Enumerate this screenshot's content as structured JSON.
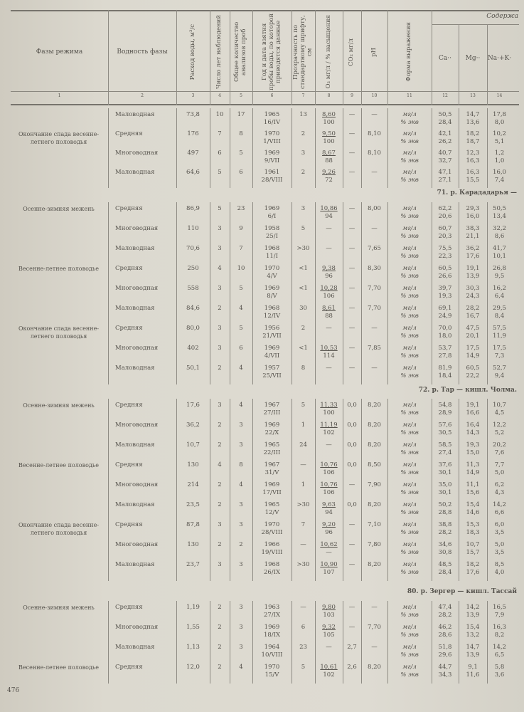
{
  "header": {
    "columns": [
      "Фазы режима",
      "Водность фазы",
      "Расход воды, м³/с",
      "Число лет наблюдений",
      "Общее количество анализов проб",
      "Год и дата взятия пробы воды, по которой приводятся данные",
      "Прозрачность по стандартному шрифту, см",
      "O₂ мг/л / % насыщения",
      "CO₂ мг/л",
      "pH",
      "Форма выражения",
      "Ca··",
      "Mg··",
      "Na·+K·"
    ],
    "group_label": "Содержа",
    "numbers": [
      "1",
      "2",
      "3",
      "4",
      "5",
      "6",
      "7",
      "8",
      "9",
      "10",
      "11",
      "12",
      "13",
      "14"
    ]
  },
  "sections": [
    {
      "title": "",
      "rows": [
        {
          "phase": "",
          "water": "Маловодная",
          "q": "73,8",
          "years": "10",
          "samples": "17",
          "year": "1965",
          "date": "16/IV",
          "transp": "13",
          "o2": "8,60",
          "o2s": "100",
          "co2": "—",
          "ph": "—",
          "f1": "мг/л",
          "f2": "% экв",
          "ca1": "50,5",
          "ca2": "28,4",
          "mg1": "14,7",
          "mg2": "13,6",
          "na1": "17,8",
          "na2": "8,0"
        },
        {
          "phase": "Окончание спада весенне-летнего половодья",
          "water": "Средняя",
          "q": "176",
          "years": "7",
          "samples": "8",
          "year": "1970",
          "date": "1/VIII",
          "transp": "2",
          "o2": "9,50",
          "o2s": "100",
          "co2": "—",
          "ph": "8,10",
          "f1": "мг/л",
          "f2": "% экв",
          "ca1": "42,1",
          "ca2": "26,2",
          "mg1": "18,2",
          "mg2": "18,7",
          "na1": "10,2",
          "na2": "5,1"
        },
        {
          "phase": "",
          "water": "Многоводная",
          "q": "497",
          "years": "6",
          "samples": "5",
          "year": "1969",
          "date": "9/VII",
          "transp": "3",
          "o2": "8,67",
          "o2s": "88",
          "co2": "—",
          "ph": "8,10",
          "f1": "мг/л",
          "f2": "% экв",
          "ca1": "40,7",
          "ca2": "32,7",
          "mg1": "12,3",
          "mg2": "16,3",
          "na1": "1,2",
          "na2": "1,0"
        },
        {
          "phase": "",
          "water": "Маловодная",
          "q": "64,6",
          "years": "5",
          "samples": "6",
          "year": "1961",
          "date": "28/VIII",
          "transp": "2",
          "o2": "9,26",
          "o2s": "72",
          "co2": "—",
          "ph": "—",
          "f1": "мг/л",
          "f2": "% экв",
          "ca1": "47,1",
          "ca2": "27,1",
          "mg1": "16,3",
          "mg2": "15,5",
          "na1": "16,0",
          "na2": "7,4"
        }
      ]
    },
    {
      "title": "71. р. Карададарья —",
      "rows": [
        {
          "phase": "Осенне-зимняя межень",
          "water": "Средняя",
          "q": "86,9",
          "years": "5",
          "samples": "23",
          "year": "1969",
          "date": "6/I",
          "transp": "3",
          "o2": "10,86",
          "o2s": "94",
          "co2": "—",
          "ph": "8,00",
          "f1": "мг/л",
          "f2": "% экв",
          "ca1": "62,2",
          "ca2": "20,6",
          "mg1": "29,3",
          "mg2": "16,0",
          "na1": "50,5",
          "na2": "13,4"
        },
        {
          "phase": "",
          "water": "Многоводная",
          "q": "110",
          "years": "3",
          "samples": "9",
          "year": "1958",
          "date": "25/I",
          "transp": "5",
          "o2": "—",
          "o2s": "",
          "co2": "—",
          "ph": "—",
          "f1": "мг/л",
          "f2": "% экв",
          "ca1": "60,7",
          "ca2": "20,3",
          "mg1": "38,3",
          "mg2": "21,1",
          "na1": "32,2",
          "na2": "8,6"
        },
        {
          "phase": "",
          "water": "Маловодная",
          "q": "70,6",
          "years": "3",
          "samples": "7",
          "year": "1968",
          "date": "11/I",
          "transp": ">30",
          "o2": "—",
          "o2s": "",
          "co2": "—",
          "ph": "7,65",
          "f1": "мг/л",
          "f2": "% экв",
          "ca1": "75,5",
          "ca2": "22,3",
          "mg1": "36,2",
          "mg2": "17,6",
          "na1": "41,7",
          "na2": "10,1"
        },
        {
          "phase": "Весенне-летнее половодье",
          "water": "Средняя",
          "q": "250",
          "years": "4",
          "samples": "10",
          "year": "1970",
          "date": "4/V",
          "transp": "<1",
          "o2": "9,38",
          "o2s": "96",
          "co2": "—",
          "ph": "8,30",
          "f1": "мг/л",
          "f2": "% экв",
          "ca1": "60,5",
          "ca2": "26,6",
          "mg1": "19,1",
          "mg2": "13,9",
          "na1": "26,8",
          "na2": "9,5"
        },
        {
          "phase": "",
          "water": "Многоводная",
          "q": "558",
          "years": "3",
          "samples": "5",
          "year": "1969",
          "date": "8/V",
          "transp": "<1",
          "o2": "10,28",
          "o2s": "106",
          "co2": "—",
          "ph": "7,70",
          "f1": "мг/л",
          "f2": "% экв",
          "ca1": "39,7",
          "ca2": "19,3",
          "mg1": "30,3",
          "mg2": "24,3",
          "na1": "16,2",
          "na2": "6,4"
        },
        {
          "phase": "",
          "water": "Маловодная",
          "q": "84,6",
          "years": "2",
          "samples": "4",
          "year": "1968",
          "date": "12/IV",
          "transp": "30",
          "o2": "8,61",
          "o2s": "88",
          "co2": "—",
          "ph": "7,70",
          "f1": "мг/л",
          "f2": "% экв",
          "ca1": "69,1",
          "ca2": "24,9",
          "mg1": "28,2",
          "mg2": "16,7",
          "na1": "29,5",
          "na2": "8,4"
        },
        {
          "phase": "Окончание спада весенне-летнего половодья",
          "water": "Средняя",
          "q": "80,0",
          "years": "3",
          "samples": "5",
          "year": "1956",
          "date": "21/VII",
          "transp": "2",
          "o2": "—",
          "o2s": "",
          "co2": "—",
          "ph": "—",
          "f1": "мг/л",
          "f2": "% экв",
          "ca1": "70,0",
          "ca2": "18,0",
          "mg1": "47,5",
          "mg2": "20,1",
          "na1": "57,5",
          "na2": "11,9"
        },
        {
          "phase": "",
          "water": "Многоводная",
          "q": "402",
          "years": "3",
          "samples": "6",
          "year": "1969",
          "date": "4/VII",
          "transp": "<1",
          "o2": "10,53",
          "o2s": "114",
          "co2": "—",
          "ph": "7,85",
          "f1": "мг/л",
          "f2": "% экв",
          "ca1": "53,7",
          "ca2": "27,8",
          "mg1": "17,5",
          "mg2": "14,9",
          "na1": "17,5",
          "na2": "7,3"
        },
        {
          "phase": "",
          "water": "Маловодная",
          "q": "50,1",
          "years": "2",
          "samples": "4",
          "year": "1957",
          "date": "25/VII",
          "transp": "8",
          "o2": "—",
          "o2s": "",
          "co2": "—",
          "ph": "—",
          "f1": "мг/л",
          "f2": "% экв",
          "ca1": "81,9",
          "ca2": "18,4",
          "mg1": "60,5",
          "mg2": "22,2",
          "na1": "52,7",
          "na2": "9,4"
        }
      ]
    },
    {
      "title": "72. р. Тар — кишл. Чолма.",
      "rows": [
        {
          "phase": "Осенне-зимняя межень",
          "water": "Средняя",
          "q": "17,6",
          "years": "3",
          "samples": "4",
          "year": "1967",
          "date": "27/III",
          "transp": "5",
          "o2": "11,33",
          "o2s": "100",
          "co2": "0,0",
          "ph": "8,20",
          "f1": "мг/л",
          "f2": "% экв",
          "ca1": "54,8",
          "ca2": "28,9",
          "mg1": "19,1",
          "mg2": "16,6",
          "na1": "10,7",
          "na2": "4,5"
        },
        {
          "phase": "",
          "water": "Многоводная",
          "q": "36,2",
          "years": "2",
          "samples": "3",
          "year": "1969",
          "date": "22/X",
          "transp": "1",
          "o2": "11,19",
          "o2s": "102",
          "co2": "0,0",
          "ph": "8,20",
          "f1": "мг/л",
          "f2": "% экв",
          "ca1": "57,6",
          "ca2": "30,5",
          "mg1": "16,4",
          "mg2": "14,3",
          "na1": "12,2",
          "na2": "5,2"
        },
        {
          "phase": "",
          "water": "Маловодная",
          "q": "10,7",
          "years": "2",
          "samples": "3",
          "year": "1965",
          "date": "22/III",
          "transp": "24",
          "o2": "—",
          "o2s": "",
          "co2": "0,0",
          "ph": "8,20",
          "f1": "мг/л",
          "f2": "% экв",
          "ca1": "58,5",
          "ca2": "27,4",
          "mg1": "19,3",
          "mg2": "15,0",
          "na1": "20,2",
          "na2": "7,6"
        },
        {
          "phase": "Весенне-летнее половодье",
          "water": "Средняя",
          "q": "130",
          "years": "4",
          "samples": "8",
          "year": "1967",
          "date": "31/V",
          "transp": "—",
          "o2": "10,76",
          "o2s": "106",
          "co2": "0,0",
          "ph": "8,50",
          "f1": "мг/л",
          "f2": "% экв",
          "ca1": "37,6",
          "ca2": "30,1",
          "mg1": "11,3",
          "mg2": "14,9",
          "na1": "7,7",
          "na2": "5,0"
        },
        {
          "phase": "",
          "water": "Многоводная",
          "q": "214",
          "years": "2",
          "samples": "4",
          "year": "1969",
          "date": "17/VII",
          "transp": "1",
          "o2": "10,76",
          "o2s": "106",
          "co2": "—",
          "ph": "7,90",
          "f1": "мг/л",
          "f2": "% экв",
          "ca1": "35,0",
          "ca2": "30,1",
          "mg1": "11,1",
          "mg2": "15,6",
          "na1": "6,2",
          "na2": "4,3"
        },
        {
          "phase": "",
          "water": "Маловодная",
          "q": "23,5",
          "years": "2",
          "samples": "3",
          "year": "1965",
          "date": "12/V",
          "transp": ">30",
          "o2": "9,63",
          "o2s": "94",
          "co2": "0,0",
          "ph": "8,20",
          "f1": "мг/л",
          "f2": "% экв",
          "ca1": "50,2",
          "ca2": "28,8",
          "mg1": "15,4",
          "mg2": "14,6",
          "na1": "14,2",
          "na2": "6,6"
        },
        {
          "phase": "Окончание спада весенне-летнего половодья",
          "water": "Средняя",
          "q": "87,8",
          "years": "3",
          "samples": "3",
          "year": "1970",
          "date": "28/VIII",
          "transp": "7",
          "o2": "9,20",
          "o2s": "96",
          "co2": "—",
          "ph": "7,10",
          "f1": "мг/л",
          "f2": "% экв",
          "ca1": "38,8",
          "ca2": "28,2",
          "mg1": "15,3",
          "mg2": "18,3",
          "na1": "6,0",
          "na2": "3,5"
        },
        {
          "phase": "",
          "water": "Многоводная",
          "q": "130",
          "years": "2",
          "samples": "2",
          "year": "1966",
          "date": "19/VIII",
          "transp": "—",
          "o2": "10,62",
          "o2s": "—",
          "co2": "—",
          "ph": "7,80",
          "f1": "мг/л",
          "f2": "% экв",
          "ca1": "34,6",
          "ca2": "30,8",
          "mg1": "10,7",
          "mg2": "15,7",
          "na1": "5,0",
          "na2": "3,5"
        },
        {
          "phase": "",
          "water": "Маловодная",
          "q": "23,7",
          "years": "3",
          "samples": "3",
          "year": "1968",
          "date": "26/IX",
          "transp": ">30",
          "o2": "10,90",
          "o2s": "107",
          "co2": "—",
          "ph": "8,20",
          "f1": "мг/л",
          "f2": "% экв",
          "ca1": "48,5",
          "ca2": "28,4",
          "mg1": "18,2",
          "mg2": "17,6",
          "na1": "8,5",
          "na2": "4,0"
        }
      ]
    },
    {
      "title": "80. р. Зергер — кишл. Тассай",
      "rows": [
        {
          "phase": "Осенне-зимняя межень",
          "water": "Средняя",
          "q": "1,19",
          "years": "2",
          "samples": "3",
          "year": "1963",
          "date": "27/IX",
          "transp": "—",
          "o2": "9,80",
          "o2s": "103",
          "co2": "—",
          "ph": "—",
          "f1": "мг/л",
          "f2": "% экв",
          "ca1": "47,4",
          "ca2": "28,2",
          "mg1": "14,2",
          "mg2": "13,9",
          "na1": "16,5",
          "na2": "7,9"
        },
        {
          "phase": "",
          "water": "Многоводная",
          "q": "1,55",
          "years": "2",
          "samples": "3",
          "year": "1969",
          "date": "18/IX",
          "transp": "6",
          "o2": "9,32",
          "o2s": "105",
          "co2": "—",
          "ph": "7,70",
          "f1": "мг/л",
          "f2": "% экв",
          "ca1": "46,2",
          "ca2": "28,6",
          "mg1": "15,4",
          "mg2": "13,2",
          "na1": "16,3",
          "na2": "8,2"
        },
        {
          "phase": "",
          "water": "Маловодная",
          "q": "1,13",
          "years": "2",
          "samples": "3",
          "year": "1964",
          "date": "10/VIII",
          "transp": "23",
          "o2": "—",
          "o2s": "",
          "co2": "2,7",
          "ph": "—",
          "f1": "мг/л",
          "f2": "% экв",
          "ca1": "51,8",
          "ca2": "29,6",
          "mg1": "14,7",
          "mg2": "13,9",
          "na1": "14,2",
          "na2": "6,5"
        },
        {
          "phase": "Весенне-летнее половодье",
          "water": "Средняя",
          "q": "12,0",
          "years": "2",
          "samples": "4",
          "year": "1970",
          "date": "15/V",
          "transp": "5",
          "o2": "10,61",
          "o2s": "102",
          "co2": "2,6",
          "ph": "8,20",
          "f1": "мг/л",
          "f2": "% экв",
          "ca1": "44,7",
          "ca2": "34,3",
          "mg1": "9,1",
          "mg2": "11,6",
          "na1": "5,8",
          "na2": "3,6"
        }
      ]
    }
  ],
  "page_number": "476"
}
